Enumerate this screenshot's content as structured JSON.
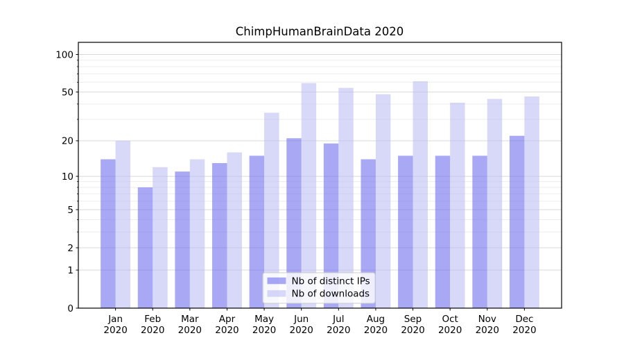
{
  "title": "ChimpHumanBrainData 2020",
  "chart_data": {
    "type": "bar",
    "title": "ChimpHumanBrainData 2020",
    "categories": [
      "Jan",
      "Feb",
      "Mar",
      "Apr",
      "May",
      "Jun",
      "Jul",
      "Aug",
      "Sep",
      "Oct",
      "Nov",
      "Dec"
    ],
    "category_year": "2020",
    "x_tick_labels": [
      "Jan 2020",
      "Feb 2020",
      "Mar 2020",
      "Apr 2020",
      "May 2020",
      "Jun 2020",
      "Jul 2020",
      "Aug 2020",
      "Sep 2020",
      "Oct 2020",
      "Nov 2020",
      "Dec 2020"
    ],
    "series": [
      {
        "name": "Nb of distinct IPs",
        "key": "ips",
        "color": "#6e6eee",
        "values": [
          14,
          8,
          11,
          13,
          15,
          21,
          19,
          14,
          15,
          15,
          15,
          22
        ]
      },
      {
        "name": "Nb of downloads",
        "key": "downloads",
        "color": "#bebef3",
        "values": [
          20,
          12,
          14,
          16,
          34,
          59,
          54,
          48,
          61,
          41,
          44,
          46
        ]
      }
    ],
    "xlabel": "",
    "ylabel": "",
    "yscale": "symlog",
    "ylim": [
      0,
      125
    ],
    "yticks": [
      0,
      1,
      2,
      5,
      10,
      20,
      50,
      100
    ],
    "y_minor_ticks": [
      3,
      4,
      6,
      7,
      8,
      9,
      30,
      40,
      60,
      70,
      80,
      90
    ],
    "grid": "on",
    "legend_position": "lower center"
  },
  "colors": {
    "bar_ips": "#6e6eee",
    "bar_downloads": "#bebef3",
    "grid_major": "#d9d9d9",
    "grid_minor": "#ededed",
    "frame": "#000000",
    "tick": "#000000",
    "text": "#000000",
    "legend_bg": "#ffffff",
    "legend_border": "#cccccc",
    "background": "#ffffff"
  },
  "legend": {
    "items": [
      {
        "label": "Nb of distinct IPs"
      },
      {
        "label": "Nb of downloads"
      }
    ]
  }
}
